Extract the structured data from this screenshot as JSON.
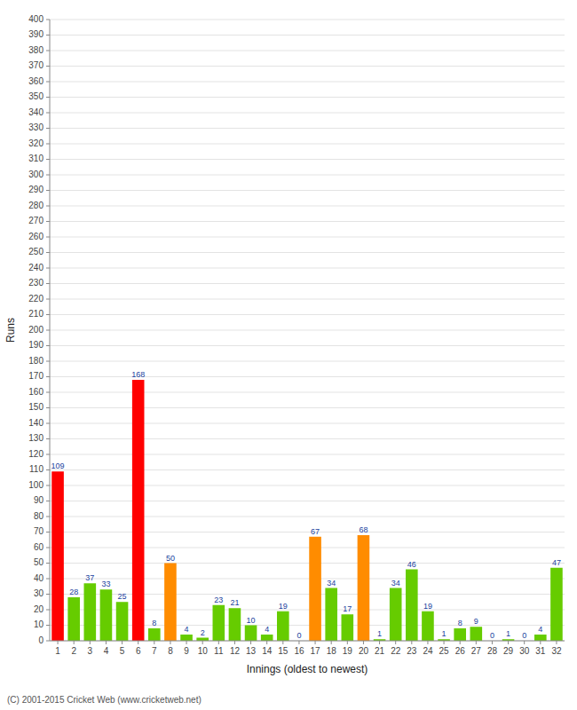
{
  "chart_data": {
    "type": "bar",
    "categories": [
      "1",
      "2",
      "3",
      "4",
      "5",
      "6",
      "7",
      "8",
      "9",
      "10",
      "11",
      "12",
      "13",
      "14",
      "15",
      "16",
      "17",
      "18",
      "19",
      "20",
      "21",
      "22",
      "23",
      "24",
      "25",
      "26",
      "27",
      "28",
      "29",
      "30",
      "31",
      "32"
    ],
    "values": [
      109,
      28,
      37,
      33,
      25,
      168,
      8,
      50,
      4,
      2,
      23,
      21,
      10,
      4,
      19,
      0,
      67,
      34,
      17,
      68,
      1,
      34,
      46,
      19,
      1,
      8,
      9,
      0,
      1,
      0,
      4,
      47
    ],
    "colors": [
      "#ff0000",
      "#66cc00",
      "#66cc00",
      "#66cc00",
      "#66cc00",
      "#ff0000",
      "#66cc00",
      "#ff8c00",
      "#66cc00",
      "#66cc00",
      "#66cc00",
      "#66cc00",
      "#66cc00",
      "#66cc00",
      "#66cc00",
      "#66cc00",
      "#ff8c00",
      "#66cc00",
      "#66cc00",
      "#ff8c00",
      "#66cc00",
      "#66cc00",
      "#66cc00",
      "#66cc00",
      "#66cc00",
      "#66cc00",
      "#66cc00",
      "#66cc00",
      "#66cc00",
      "#66cc00",
      "#66cc00",
      "#66cc00"
    ],
    "x_label": "Innings (oldest to newest)",
    "y_label": "Runs",
    "ylim": [
      0,
      400
    ],
    "yticks": [
      0,
      10,
      20,
      30,
      40,
      50,
      60,
      70,
      80,
      90,
      100,
      110,
      120,
      130,
      140,
      150,
      160,
      170,
      180,
      190,
      200,
      210,
      220,
      230,
      240,
      250,
      260,
      270,
      280,
      290,
      300,
      310,
      320,
      330,
      340,
      350,
      360,
      370,
      380,
      390,
      400
    ],
    "grid": true,
    "data_labels": true,
    "annotations": [
      "(C) 2001-2015 Cricket Web (www.cricketweb.net)"
    ]
  }
}
